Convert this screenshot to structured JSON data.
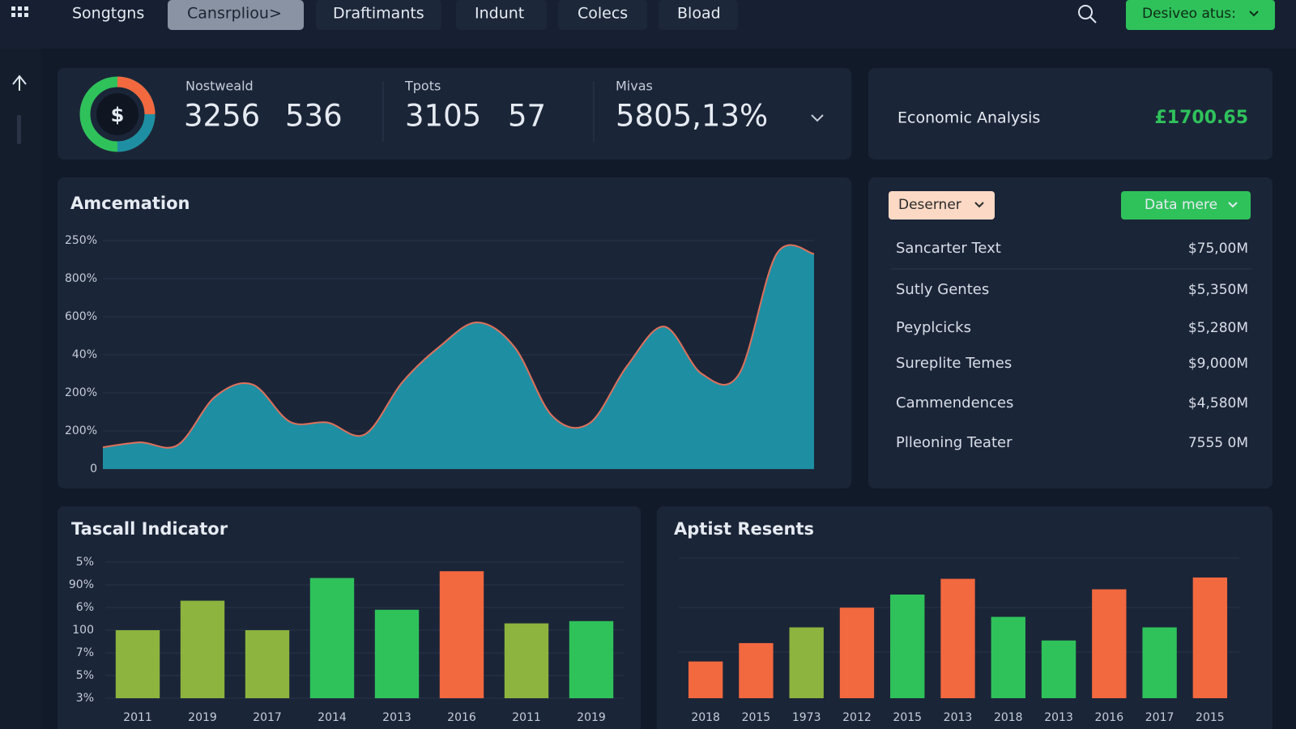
{
  "nav": {
    "items": [
      "Songtgns",
      "Cansrpliou>",
      "Draftimants",
      "Indunt",
      "Colecs",
      "Bload"
    ],
    "button": "Desiveo atus:"
  },
  "summary": {
    "icon": "$",
    "stats": [
      {
        "label": "Nostweald",
        "values": [
          "3256",
          "536"
        ]
      },
      {
        "label": "Tpots",
        "values": [
          "3105",
          "57"
        ]
      },
      {
        "label": "Mivas",
        "values": [
          "5805,13%"
        ]
      }
    ]
  },
  "economic": {
    "label": "Economic Analysis",
    "value": "£1700.65"
  },
  "list": {
    "dropdowns": [
      "Deserner",
      "Data mere"
    ],
    "rows": [
      [
        "Sancarter Text",
        "$75,00M"
      ],
      [
        "Sutly Gentes",
        "$5,350M"
      ],
      [
        "Peyplcicks",
        "$5,280M"
      ],
      [
        "Sureplite Temes",
        "$9,000M"
      ],
      [
        "Cammendences",
        "$4,580M"
      ],
      [
        "Plleoning Teater",
        "7555 0M"
      ]
    ]
  },
  "chart_data": [
    {
      "type": "area",
      "title": "Amcemation",
      "color": "#1e8fa3",
      "line_color": "#e0705a",
      "values": [
        0.57,
        0.7,
        0.63,
        1.9,
        2.22,
        1.24,
        1.22,
        0.91,
        2.28,
        3.22,
        3.85,
        3.2,
        1.4,
        1.2,
        2.7,
        3.74,
        2.5,
        2.5,
        5.65,
        5.65
      ],
      "ylim": [
        0,
        6
      ],
      "yticks": [
        0,
        {
          "value": 1,
          "label": "200%"
        },
        {
          "value": 2,
          "label": "200%"
        },
        {
          "value": 3,
          "label": "40%"
        },
        {
          "value": 4,
          "label": "600%"
        },
        {
          "value": 5,
          "label": "800%"
        },
        {
          "value": 6,
          "label": "250%"
        }
      ],
      "grid": true
    },
    {
      "type": "bar",
      "title": "Tascall Indicator",
      "categories": [
        "2011",
        "2019",
        "2017",
        "2014",
        "2013",
        "2016",
        "2011",
        "2019"
      ],
      "values": [
        3.0,
        4.3,
        3.0,
        5.3,
        3.9,
        5.6,
        3.3,
        3.4
      ],
      "colors": [
        "#8cb43e",
        "#8cb43e",
        "#8cb43e",
        "#2fc25b",
        "#2fc25b",
        "#f2683f",
        "#8cb43e",
        "#2fc25b"
      ],
      "ylim": [
        0,
        6
      ],
      "yticks": [
        {
          "value": 0,
          "label": "3%"
        },
        {
          "value": 1,
          "label": "5%"
        },
        {
          "value": 2,
          "label": "7%"
        },
        {
          "value": 3,
          "label": "100"
        },
        {
          "value": 4,
          "label": "6%"
        },
        {
          "value": 5,
          "label": "90%"
        },
        {
          "value": 6,
          "label": "5%"
        }
      ],
      "grid": true
    },
    {
      "type": "bar",
      "title": "Aptist Resents",
      "categories": [
        "2018",
        "2015",
        "1973",
        "2012",
        "2015",
        "2013",
        "2018",
        "2013",
        "2016",
        "2017",
        "2015"
      ],
      "values": [
        28,
        42,
        54,
        69,
        79,
        91,
        62,
        44,
        83,
        54,
        92
      ],
      "colors": [
        "#f2683f",
        "#f2683f",
        "#8cb43e",
        "#f2683f",
        "#2fc25b",
        "#f2683f",
        "#2fc25b",
        "#2fc25b",
        "#f2683f",
        "#2fc25b",
        "#f2683f"
      ],
      "ylim": [
        0,
        100
      ]
    }
  ]
}
